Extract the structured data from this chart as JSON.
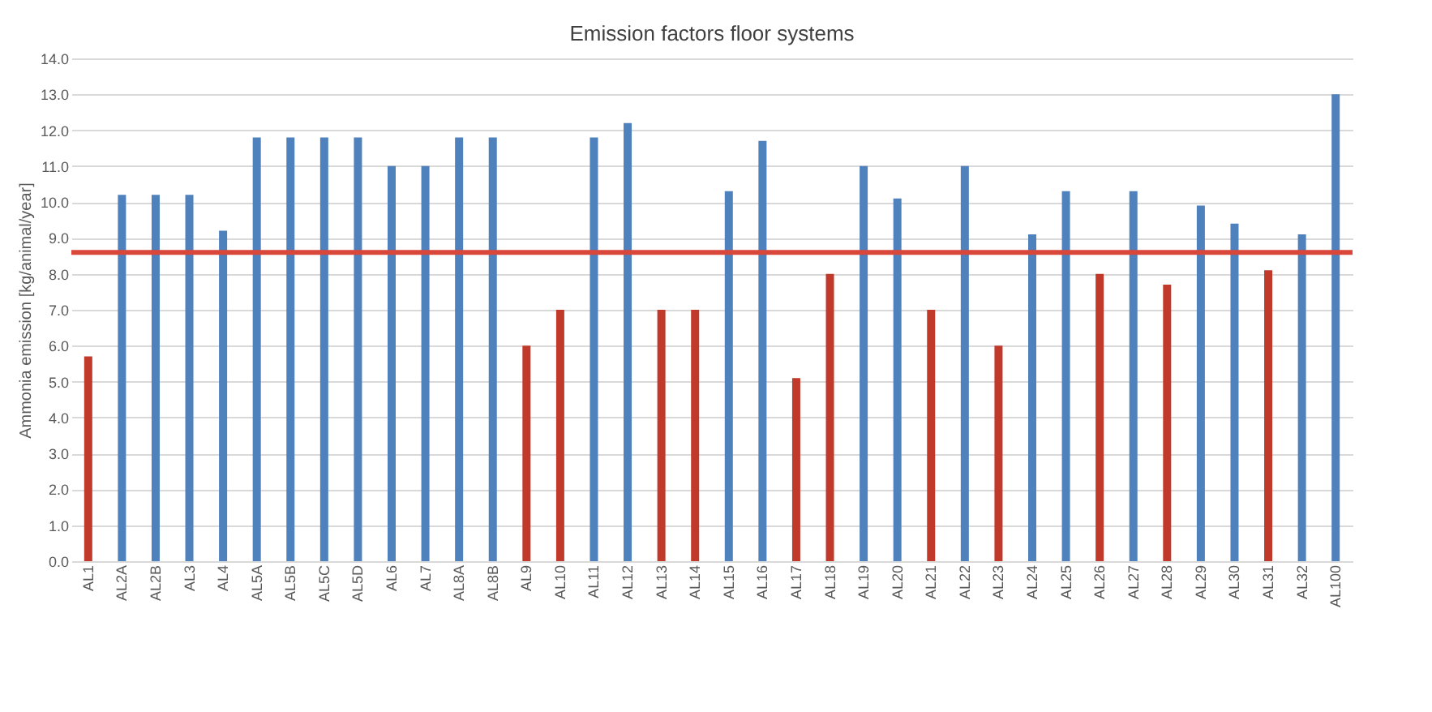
{
  "chart_data": {
    "type": "bar",
    "title": "Emission factors floor systems",
    "ylabel": "Ammonia emission [kg/animal/year]",
    "categories": [
      "AL1",
      "AL2A",
      "AL2B",
      "AL3",
      "AL4",
      "AL5A",
      "AL5B",
      "AL5C",
      "AL5D",
      "AL6",
      "AL7",
      "AL8A",
      "AL8B",
      "AL9",
      "AL10",
      "AL11",
      "AL12",
      "AL13",
      "AL14",
      "AL15",
      "AL16",
      "AL17",
      "AL18",
      "AL19",
      "AL20",
      "AL21",
      "AL22",
      "AL23",
      "AL24",
      "AL25",
      "AL26",
      "AL27",
      "AL28",
      "AL29",
      "AL30",
      "AL31",
      "AL32",
      "AL100"
    ],
    "values": [
      5.7,
      10.2,
      10.2,
      10.2,
      9.2,
      11.8,
      11.8,
      11.8,
      11.8,
      11.0,
      11.0,
      11.8,
      11.8,
      6.0,
      7.0,
      11.8,
      12.2,
      7.0,
      7.0,
      10.3,
      11.7,
      5.1,
      8.0,
      11.0,
      10.1,
      7.0,
      11.0,
      6.0,
      9.1,
      10.3,
      8.0,
      10.3,
      7.7,
      9.9,
      9.4,
      8.1,
      9.1,
      13.0
    ],
    "colors": [
      "#c0392b",
      "#4f81bd",
      "#4f81bd",
      "#4f81bd",
      "#4f81bd",
      "#4f81bd",
      "#4f81bd",
      "#4f81bd",
      "#4f81bd",
      "#4f81bd",
      "#4f81bd",
      "#4f81bd",
      "#4f81bd",
      "#c0392b",
      "#c0392b",
      "#4f81bd",
      "#4f81bd",
      "#c0392b",
      "#c0392b",
      "#4f81bd",
      "#4f81bd",
      "#c0392b",
      "#c0392b",
      "#4f81bd",
      "#4f81bd",
      "#c0392b",
      "#4f81bd",
      "#c0392b",
      "#4f81bd",
      "#4f81bd",
      "#c0392b",
      "#4f81bd",
      "#c0392b",
      "#4f81bd",
      "#4f81bd",
      "#c0392b",
      "#4f81bd",
      "#4f81bd"
    ],
    "ylim": [
      0,
      14
    ],
    "yticks": [
      {
        "value": 0,
        "label": "0.0"
      },
      {
        "value": 1,
        "label": "1.0"
      },
      {
        "value": 2,
        "label": "2.0"
      },
      {
        "value": 3,
        "label": "3.0"
      },
      {
        "value": 4,
        "label": "4.0"
      },
      {
        "value": 5,
        "label": "5.0"
      },
      {
        "value": 6,
        "label": "6.0"
      },
      {
        "value": 7,
        "label": "7.0"
      },
      {
        "value": 8,
        "label": "8.0"
      },
      {
        "value": 9,
        "label": "9.0"
      },
      {
        "value": 10,
        "label": "10.0"
      },
      {
        "value": 11,
        "label": "11.0"
      },
      {
        "value": 12,
        "label": "12.0"
      },
      {
        "value": 13,
        "label": "13.0"
      },
      {
        "value": 14,
        "label": "14.0"
      }
    ],
    "ref_lines": [
      {
        "axis": "y",
        "value": 8.6,
        "color": "#d9463a"
      }
    ],
    "grid": "y"
  }
}
